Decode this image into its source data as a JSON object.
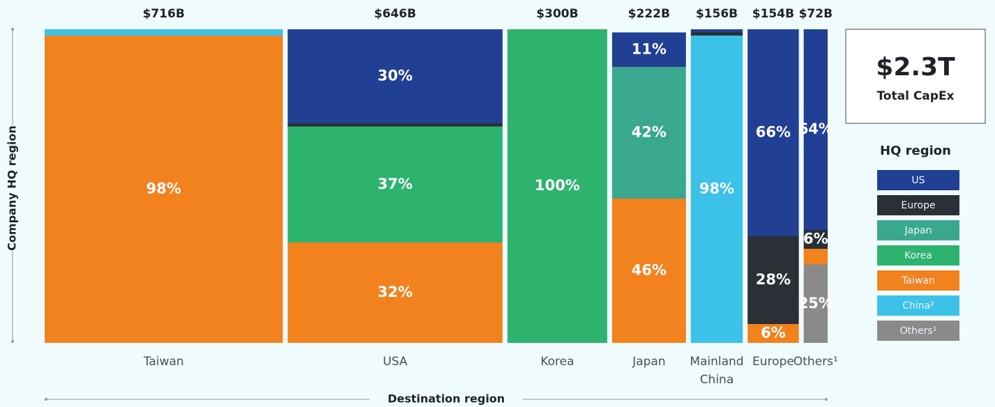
{
  "chart_data": {
    "type": "marimekko",
    "x_label": "Destination region",
    "y_label": "Company HQ region",
    "legend_title": "HQ region",
    "total": {
      "label": "$2.3T",
      "caption": "Total CapEx"
    },
    "categories": [
      "Taiwan",
      "USA",
      "Korea",
      "Japan",
      "Mainland China",
      "Europe",
      "Others¹"
    ],
    "values": [
      716,
      646,
      300,
      222,
      156,
      154,
      72
    ],
    "value_labels": [
      "$716B",
      "$646B",
      "$300B",
      "$222B",
      "$156B",
      "$154B",
      "$72B"
    ],
    "ylim": [
      0,
      100
    ],
    "series": [
      {
        "name": "US",
        "color": "#213f93",
        "values": [
          0,
          30,
          0,
          11,
          1,
          66,
          64
        ],
        "value_labels": [
          null,
          "30%",
          null,
          "11%",
          null,
          "66%",
          "64%"
        ]
      },
      {
        "name": "Europe",
        "color": "#2a3035",
        "values": [
          0,
          1,
          0,
          0,
          1,
          28,
          6
        ],
        "value_labels": [
          null,
          null,
          null,
          null,
          null,
          "28%",
          "6%"
        ]
      },
      {
        "name": "Japan",
        "color": "#3aa88e",
        "values": [
          0,
          0,
          0,
          42,
          0,
          0,
          0
        ],
        "value_labels": [
          null,
          null,
          null,
          "42%",
          null,
          null,
          null
        ]
      },
      {
        "name": "Korea",
        "color": "#2db36e",
        "values": [
          0,
          37,
          100,
          0,
          0,
          0,
          0
        ],
        "value_labels": [
          null,
          "37%",
          "100%",
          null,
          null,
          null,
          null
        ]
      },
      {
        "name": "Taiwan",
        "color": "#f2821e",
        "values": [
          98,
          32,
          0,
          46,
          0,
          6,
          5
        ],
        "value_labels": [
          "98%",
          "32%",
          null,
          "46%",
          null,
          "6%",
          null
        ]
      },
      {
        "name": "China²",
        "color": "#3cc1e8",
        "values": [
          2,
          0,
          0,
          0,
          98,
          0,
          0
        ],
        "value_labels": [
          null,
          null,
          null,
          null,
          "98%",
          null,
          null
        ]
      },
      {
        "name": "Others¹",
        "color": "#8a8a8a",
        "values": [
          0,
          0,
          0,
          0,
          0,
          0,
          25
        ],
        "value_labels": [
          null,
          null,
          null,
          null,
          null,
          null,
          "25%"
        ]
      }
    ]
  }
}
